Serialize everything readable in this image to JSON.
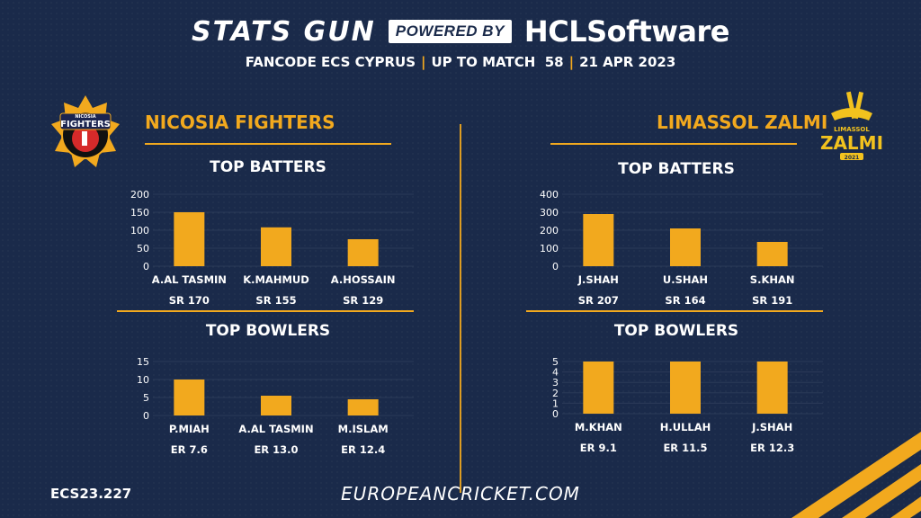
{
  "header": {
    "brand": "STATS GUN",
    "powered_by": "POWERED BY",
    "sponsor": "HCLSoftware",
    "subtitle_parts": [
      "FANCODE ECS CYPRUS",
      "UP TO MATCH  58",
      "21 APR 2023"
    ]
  },
  "teams": {
    "left": {
      "name": "NICOSIA FIGHTERS",
      "logo_text": [
        "NICOSIA",
        "FIGHTERS"
      ]
    },
    "right": {
      "name": "LIMASSOL ZALMI",
      "logo_text": [
        "LIMASSOL",
        "ZALMI",
        "2021"
      ]
    }
  },
  "sections": {
    "batters": "TOP BATTERS",
    "bowlers": "TOP BOWLERS"
  },
  "colors": {
    "background": "#1a2a4a",
    "accent": "#f2a91e",
    "text": "#ffffff"
  },
  "footer": {
    "code": "ECS23.227",
    "site": "EUROPEANCRICKET.COM"
  },
  "chart_data": [
    {
      "type": "bar",
      "team": "NICOSIA FIGHTERS",
      "title": "TOP BATTERS",
      "categories": [
        "A.AL TASMIN",
        "K.MAHMUD",
        "A.HOSSAIN"
      ],
      "values": [
        150,
        108,
        75
      ],
      "sublabels": [
        "SR 170",
        "SR 155",
        "SR 129"
      ],
      "yticks": [
        0,
        50,
        100,
        150,
        200
      ],
      "ylim": [
        0,
        200
      ]
    },
    {
      "type": "bar",
      "team": "NICOSIA FIGHTERS",
      "title": "TOP BOWLERS",
      "categories": [
        "P.MIAH",
        "A.AL TASMIN",
        "M.ISLAM"
      ],
      "values": [
        10,
        5.5,
        4.5
      ],
      "sublabels": [
        "ER 7.6",
        "ER 13.0",
        "ER 12.4"
      ],
      "yticks": [
        0,
        5,
        10,
        15
      ],
      "ylim": [
        0,
        15
      ]
    },
    {
      "type": "bar",
      "team": "LIMASSOL ZALMI",
      "title": "TOP BATTERS",
      "categories": [
        "J.SHAH",
        "U.SHAH",
        "S.KHAN"
      ],
      "values": [
        290,
        210,
        135
      ],
      "sublabels": [
        "SR 207",
        "SR 164",
        "SR 191"
      ],
      "yticks": [
        0,
        100,
        200,
        300,
        400
      ],
      "ylim": [
        0,
        400
      ]
    },
    {
      "type": "bar",
      "team": "LIMASSOL ZALMI",
      "title": "TOP BOWLERS",
      "categories": [
        "M.KHAN",
        "H.ULLAH",
        "J.SHAH"
      ],
      "values": [
        5,
        5,
        5
      ],
      "sublabels": [
        "ER 9.1",
        "ER 11.5",
        "ER 12.3"
      ],
      "yticks": [
        0,
        1,
        2,
        3,
        4,
        5
      ],
      "ylim": [
        0,
        5
      ]
    }
  ]
}
